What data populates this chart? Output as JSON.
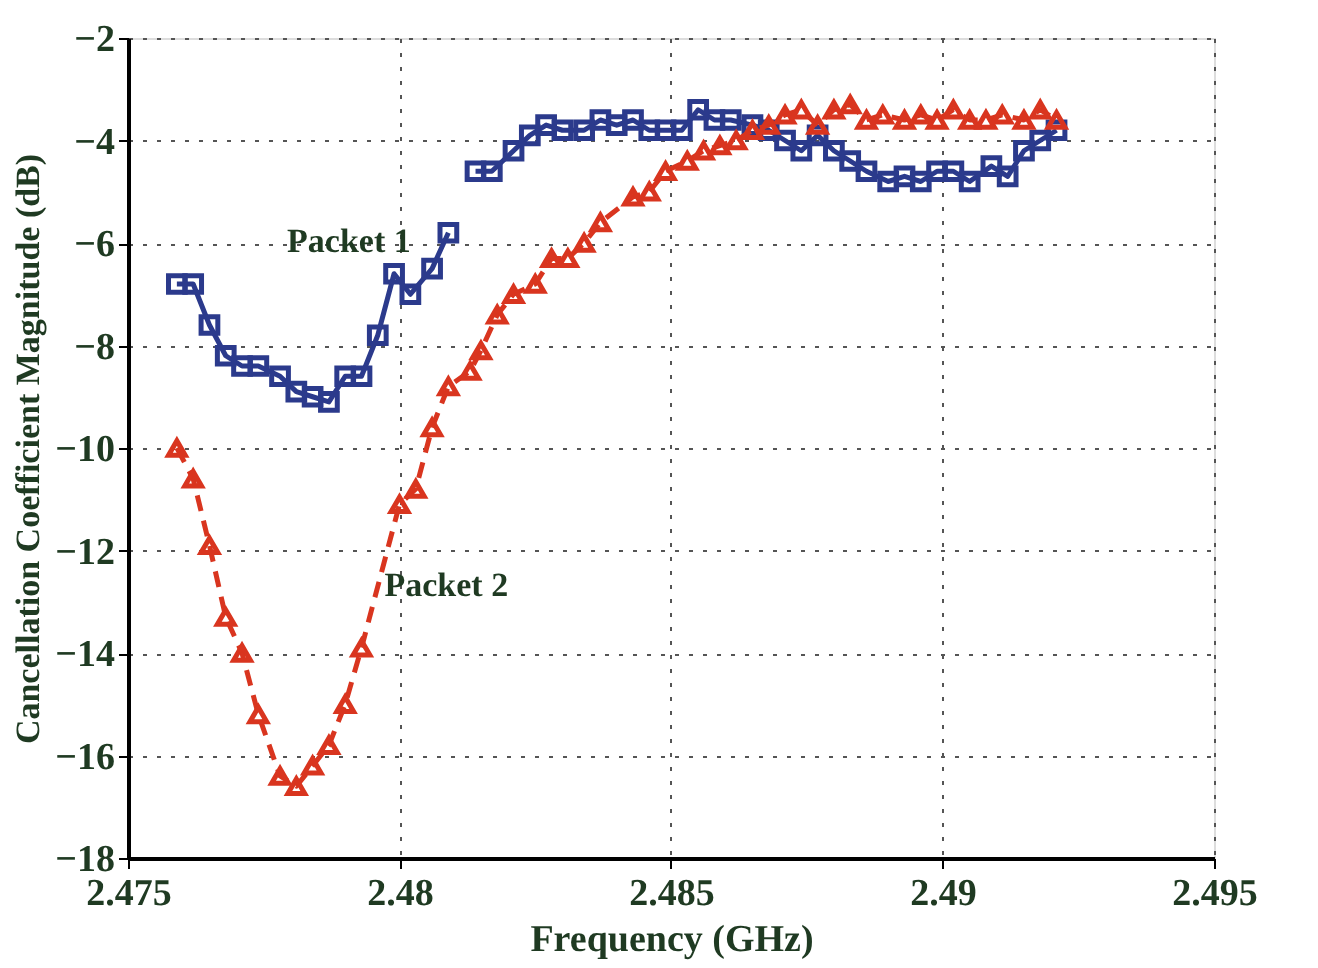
{
  "chart_data": {
    "type": "line",
    "xlabel": "Frequency (GHz)",
    "ylabel": "Cancellation Coefficient Magnitude (dB)",
    "xlim": [
      2.475,
      2.495
    ],
    "xticks": [
      2.475,
      2.48,
      2.485,
      2.49,
      2.495
    ],
    "ylim": [
      -18,
      -2
    ],
    "yticks": [
      -18,
      -16,
      -14,
      -12,
      -10,
      -8,
      -6,
      -4,
      -2
    ],
    "grid": true,
    "series": [
      {
        "name": "Packet 1",
        "color": "#2b3a8c",
        "marker": "square",
        "line_style": "solid",
        "x": [
          2.4759,
          2.4762,
          2.4765,
          2.4768,
          2.4771,
          2.4774,
          2.4778,
          2.4781,
          2.4784,
          2.4787,
          2.479,
          2.4793,
          2.4796,
          2.4799,
          2.4802,
          2.4806,
          2.4809,
          2.4812,
          2.4814,
          2.4817,
          2.4821,
          2.4824,
          2.4827,
          2.483,
          2.4834,
          2.4837,
          2.484,
          2.4843,
          2.4846,
          2.4849,
          2.4852,
          2.4855,
          2.4858,
          2.4861,
          2.4865,
          2.4868,
          2.4871,
          2.4874,
          2.4877,
          2.488,
          2.4883,
          2.4886,
          2.489,
          2.4893,
          2.4896,
          2.4899,
          2.4902,
          2.4905,
          2.4909,
          2.4912,
          2.4915,
          2.4918,
          2.4921
        ],
        "values": [
          -6.8,
          -6.8,
          -7.6,
          -8.2,
          -8.4,
          -8.4,
          -8.6,
          -8.9,
          -9.0,
          -9.1,
          -8.6,
          -8.6,
          -7.8,
          -6.6,
          -7.0,
          -6.5,
          -5.8,
          null,
          -4.6,
          -4.6,
          -4.2,
          -3.9,
          -3.7,
          -3.8,
          -3.8,
          -3.6,
          -3.7,
          -3.6,
          -3.8,
          -3.8,
          -3.8,
          -3.4,
          -3.6,
          -3.6,
          -3.7,
          -3.8,
          -4.0,
          -4.2,
          -3.9,
          -4.2,
          -4.4,
          -4.6,
          -4.8,
          -4.7,
          -4.8,
          -4.6,
          -4.6,
          -4.8,
          -4.5,
          -4.7,
          -4.2,
          -4.0,
          -3.8
        ]
      },
      {
        "name": "Packet 2",
        "color": "#d9351f",
        "marker": "triangle",
        "line_style": "dashed",
        "x": [
          2.4759,
          2.4762,
          2.4765,
          2.4768,
          2.4771,
          2.4774,
          2.4778,
          2.4781,
          2.4784,
          2.4787,
          2.479,
          2.4793,
          2.48,
          2.4803,
          2.4806,
          2.4809,
          2.4813,
          2.4815,
          2.4818,
          2.4821,
          2.4825,
          2.4828,
          2.4831,
          2.4834,
          2.4837,
          2.4843,
          2.4846,
          2.4849,
          2.4853,
          2.4856,
          2.4859,
          2.4862,
          2.4865,
          2.4868,
          2.4871,
          2.4874,
          2.4877,
          2.488,
          2.4883,
          2.4886,
          2.4889,
          2.4893,
          2.4896,
          2.4899,
          2.4902,
          2.4905,
          2.4908,
          2.4911,
          2.4915,
          2.4918,
          2.4921
        ],
        "values": [
          -10.0,
          -10.6,
          -11.9,
          -13.3,
          -14.0,
          -15.2,
          -16.4,
          -16.6,
          -16.2,
          -15.8,
          -15.0,
          -13.9,
          -11.1,
          -10.8,
          -9.6,
          -8.8,
          -8.5,
          -8.1,
          -7.4,
          -7.0,
          -6.8,
          -6.3,
          -6.3,
          -6.0,
          -5.6,
          -5.1,
          -5.0,
          -4.6,
          -4.4,
          -4.2,
          -4.1,
          -4.0,
          -3.8,
          -3.7,
          -3.5,
          -3.4,
          -3.7,
          -3.4,
          -3.3,
          -3.6,
          -3.5,
          -3.6,
          -3.5,
          -3.6,
          -3.4,
          -3.6,
          -3.6,
          -3.5,
          -3.6,
          -3.4,
          -3.6
        ]
      }
    ]
  }
}
